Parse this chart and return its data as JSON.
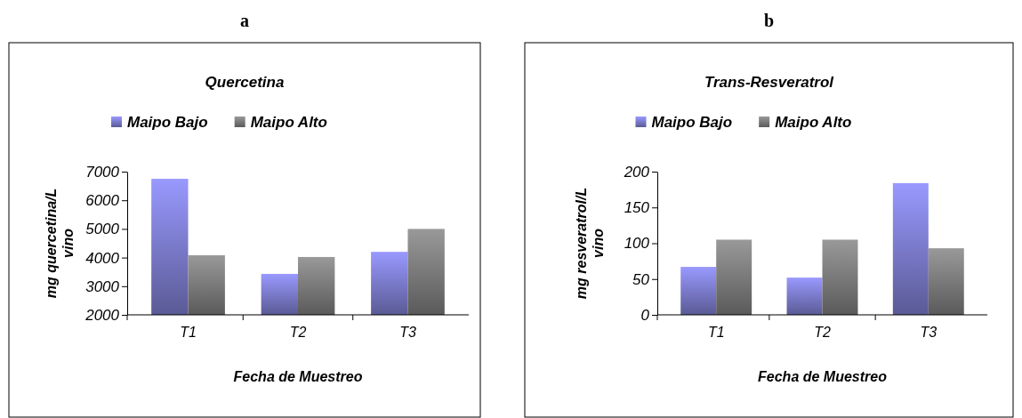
{
  "chart_data": [
    {
      "type": "bar",
      "title": "a",
      "subtitle": "Quercetina",
      "xlabel": "Fecha de Muestreo",
      "ylabel": "mg quercetina/L vino",
      "categories": [
        "T1",
        "T2",
        "T3"
      ],
      "series": [
        {
          "name": "Maipo Bajo",
          "color": "#9999ff",
          "values": [
            6750,
            3430,
            4200
          ]
        },
        {
          "name": "Maipo Alto",
          "color": "#999999",
          "values": [
            4080,
            4020,
            5000
          ]
        }
      ],
      "ylim": [
        2000,
        7000
      ],
      "yticks": [
        2000,
        3000,
        4000,
        5000,
        6000,
        7000
      ],
      "grid": false,
      "legend": "top"
    },
    {
      "type": "bar",
      "title": "b",
      "subtitle": "Trans-Resveratrol",
      "xlabel": "Fecha de Muestreo",
      "ylabel": "mg resveratrol/L vino",
      "categories": [
        "T1",
        "T2",
        "T3"
      ],
      "series": [
        {
          "name": "Maipo Bajo",
          "color": "#9999ff",
          "values": [
            67,
            52,
            184
          ]
        },
        {
          "name": "Maipo Alto",
          "color": "#999999",
          "values": [
            105,
            105,
            93
          ]
        }
      ],
      "ylim": [
        0,
        200
      ],
      "yticks": [
        0,
        50,
        100,
        150,
        200
      ],
      "grid": false,
      "legend": "top"
    }
  ]
}
